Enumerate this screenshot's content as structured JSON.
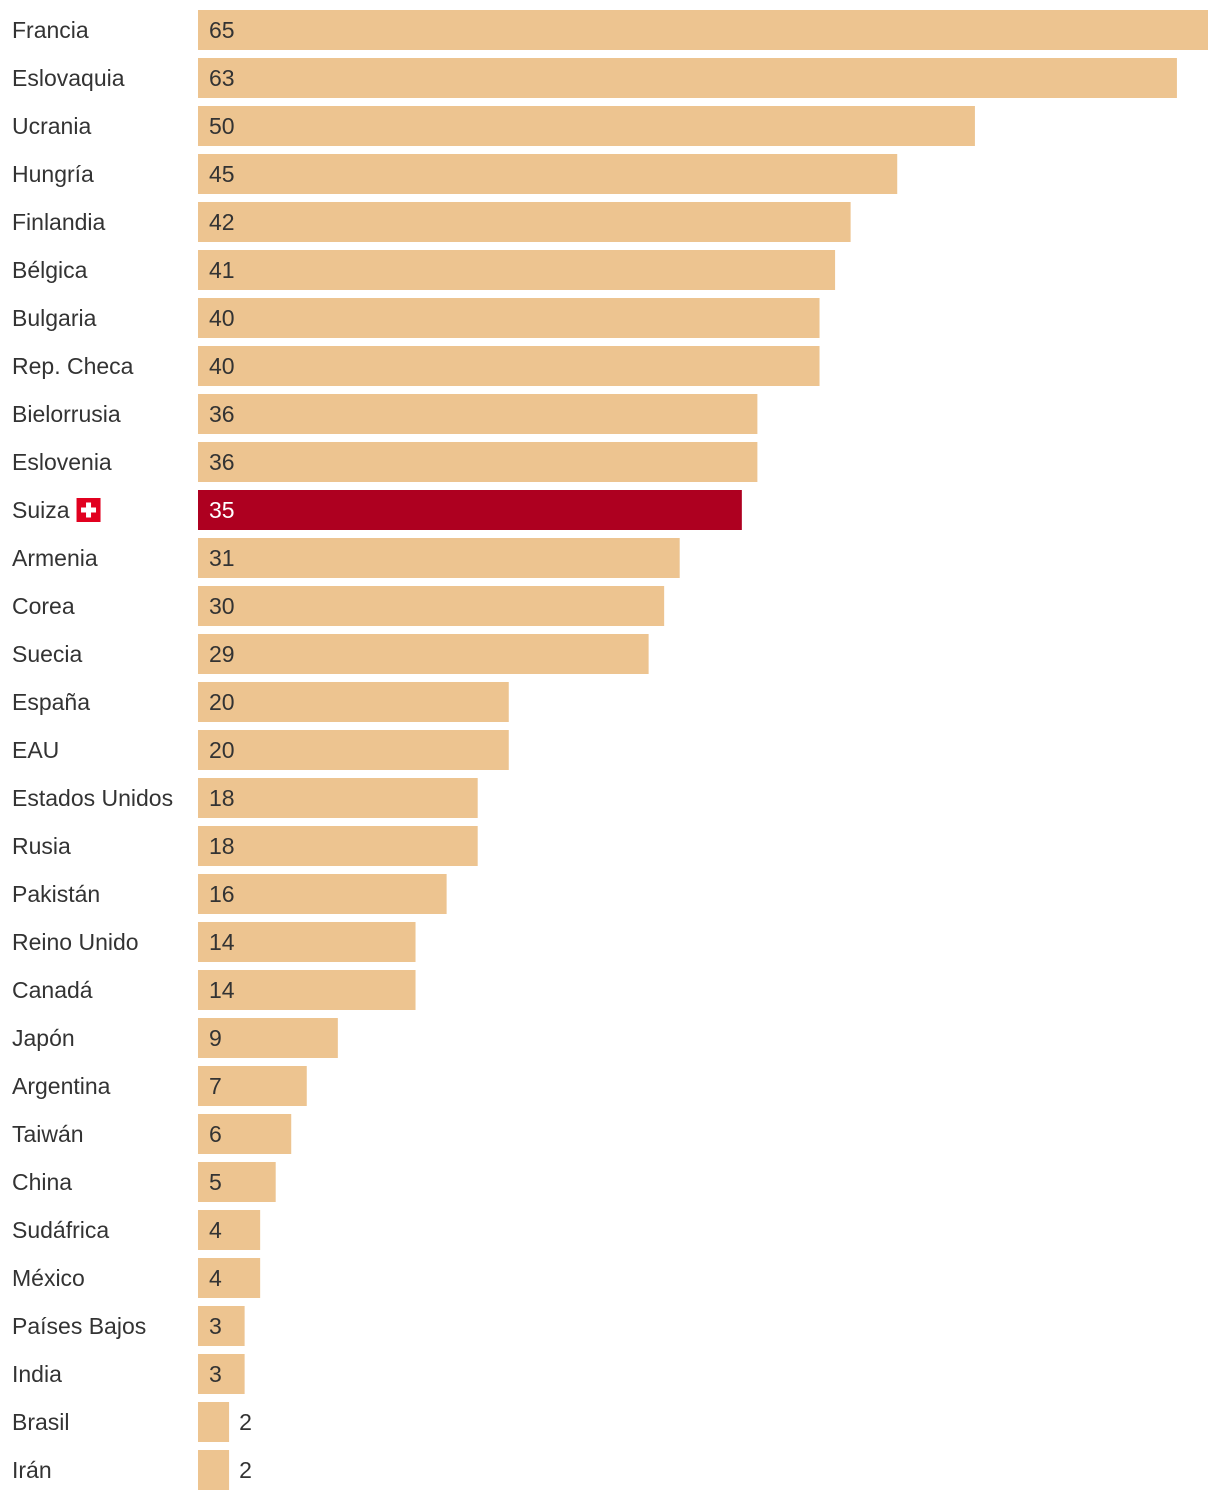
{
  "colors": {
    "bar": "#EDC490",
    "highlight": "#AE0020",
    "text": "#333333",
    "flag_red": "#E1001F",
    "flag_cross": "#FFFFFF"
  },
  "chart_data": {
    "type": "bar",
    "orientation": "horizontal",
    "title": "",
    "xlabel": "",
    "ylabel": "",
    "xlim": [
      0,
      65
    ],
    "grid": false,
    "highlight_category": "Suiza",
    "highlight_icon": "swiss-flag-icon",
    "categories": [
      "Francia",
      "Eslovaquia",
      "Ucrania",
      "Hungría",
      "Finlandia",
      "Bélgica",
      "Bulgaria",
      "Rep. Checa",
      "Bielorrusia",
      "Eslovenia",
      "Suiza",
      "Armenia",
      "Corea",
      "Suecia",
      "España",
      "EAU",
      "Estados Unidos",
      "Rusia",
      "Pakistán",
      "Reino Unido",
      "Canadá",
      "Japón",
      "Argentina",
      "Taiwán",
      "China",
      "Sudáfrica",
      "México",
      "Países Bajos",
      "India",
      "Brasil",
      "Irán"
    ],
    "values": [
      65,
      63,
      50,
      45,
      42,
      41,
      40,
      40,
      36,
      36,
      35,
      31,
      30,
      29,
      20,
      20,
      18,
      18,
      16,
      14,
      14,
      9,
      7,
      6,
      5,
      4,
      4,
      3,
      3,
      2,
      2
    ]
  }
}
